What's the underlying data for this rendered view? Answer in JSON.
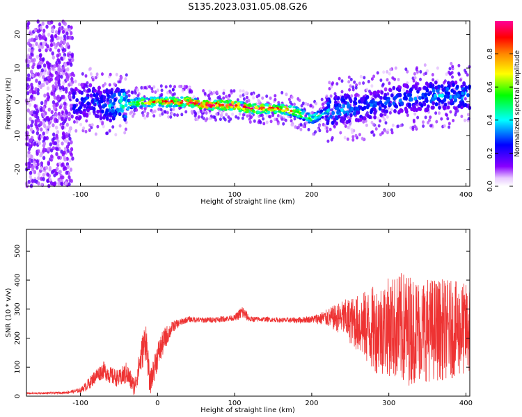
{
  "title": "S135.2023.031.05.08.G26",
  "chart_data": [
    {
      "type": "heatmap",
      "xlabel": "Height of straight line (km)",
      "ylabel": "Frequency (Hz)",
      "xlim": [
        -170,
        405
      ],
      "ylim": [
        -25,
        24
      ],
      "xticks": [
        -100,
        0,
        100,
        200,
        300,
        400
      ],
      "yticks": [
        -20,
        -10,
        0,
        10,
        20
      ],
      "colorbar": {
        "label": "Normalized spectral amplitude",
        "range": [
          0,
          1
        ],
        "ticks": [
          0.0,
          0.2,
          0.4,
          0.6,
          0.8
        ],
        "tick_labels": [
          "0.0",
          "0.2",
          "0.4",
          "0.6",
          "0.8"
        ],
        "colormap": [
          "#ffffff",
          "#e8c8ff",
          "#8800ff",
          "#0000ff",
          "#00ffff",
          "#00ff00",
          "#ffff00",
          "#ff8800",
          "#ff0000",
          "#ff0099"
        ]
      },
      "ridge": {
        "x": [
          -110,
          -90,
          -70,
          -50,
          -40,
          -20,
          0,
          20,
          40,
          60,
          80,
          100,
          120,
          140,
          160,
          180,
          200,
          210,
          220,
          240,
          260,
          280,
          300,
          320,
          340,
          360,
          380,
          400
        ],
        "y": [
          -1,
          1,
          -1,
          -1,
          -1,
          0,
          0,
          0,
          0,
          -1,
          -1,
          -1,
          -2,
          -2,
          -2,
          -3,
          -5,
          -4,
          -3,
          -2,
          -2,
          -1,
          0,
          1,
          1,
          2,
          2,
          2
        ],
        "amplitude": [
          0.3,
          0.25,
          0.3,
          0.45,
          0.55,
          0.7,
          0.8,
          0.85,
          0.9,
          0.95,
          0.98,
          0.95,
          0.9,
          0.9,
          0.85,
          0.75,
          0.55,
          0.5,
          0.4,
          0.35,
          0.3,
          0.3,
          0.3,
          0.3,
          0.3,
          0.35,
          0.35,
          0.35
        ]
      },
      "grid": false
    },
    {
      "type": "line",
      "xlabel": "Height of straight line (km)",
      "ylabel": "SNR (10 * v/v)",
      "xlim": [
        -170,
        405
      ],
      "ylim": [
        0,
        575
      ],
      "xticks": [
        -100,
        0,
        100,
        200,
        300,
        400
      ],
      "yticks": [
        0,
        100,
        200,
        300,
        400,
        500
      ],
      "color": "#ee3333",
      "series": [
        {
          "x": [
            -170,
            -150,
            -120,
            -100,
            -90,
            -80,
            -70,
            -60,
            -50,
            -40,
            -30,
            -20,
            -15,
            -10,
            0,
            10,
            20,
            30,
            40,
            60,
            80,
            100,
            110,
            120,
            140,
            160,
            180,
            200,
            220,
            240,
            260,
            280,
            300,
            320,
            340,
            360,
            380,
            400
          ],
          "values": [
            10,
            10,
            12,
            20,
            40,
            70,
            90,
            70,
            60,
            80,
            30,
            150,
            200,
            40,
            140,
            200,
            240,
            255,
            265,
            262,
            265,
            270,
            290,
            265,
            265,
            262,
            262,
            265,
            270,
            270,
            250,
            230,
            240,
            230,
            230,
            230,
            230,
            230
          ],
          "spread": [
            3,
            3,
            4,
            8,
            20,
            25,
            30,
            30,
            30,
            40,
            30,
            60,
            70,
            40,
            50,
            40,
            20,
            12,
            10,
            10,
            10,
            10,
            25,
            10,
            8,
            8,
            10,
            12,
            30,
            60,
            100,
            150,
            170,
            200,
            180,
            180,
            170,
            160
          ]
        }
      ],
      "grid": false
    }
  ]
}
